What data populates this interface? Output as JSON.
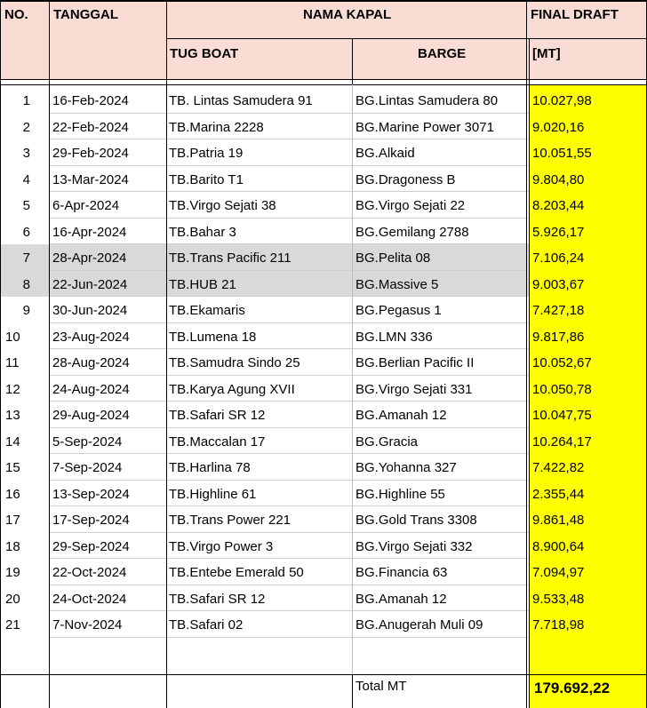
{
  "header": {
    "no": "NO.",
    "tanggal": "TANGGAL",
    "nama_kapal": "NAMA KAPAL",
    "final_draft": "FINAL DRAFT",
    "tug_boat": "TUG BOAT",
    "barge": "BARGE",
    "unit": "[MT]"
  },
  "rows": [
    {
      "no": "1",
      "date": "16-Feb-2024",
      "tug": "TB. Lintas Samudera 91",
      "barge": "BG.Lintas Samudera 80",
      "draft": "10.027,98"
    },
    {
      "no": "2",
      "date": "22-Feb-2024",
      "tug": "TB.Marina 2228",
      "barge": "BG.Marine Power 3071",
      "draft": "9.020,16"
    },
    {
      "no": "3",
      "date": "29-Feb-2024",
      "tug": "TB.Patria 19",
      "barge": "BG.Alkaid",
      "draft": "10.051,55"
    },
    {
      "no": "4",
      "date": "13-Mar-2024",
      "tug": "TB.Barito T1",
      "barge": "BG.Dragoness B",
      "draft": "9.804,80"
    },
    {
      "no": "5",
      "date": "6-Apr-2024",
      "tug": "TB.Virgo Sejati 38",
      "barge": "BG.Virgo Sejati 22",
      "draft": "8.203,44"
    },
    {
      "no": "6",
      "date": "16-Apr-2024",
      "tug": "TB.Bahar 3",
      "barge": "BG.Gemilang 2788",
      "draft": "5.926,17"
    },
    {
      "no": "7",
      "date": "28-Apr-2024",
      "tug": "TB.Trans Pacific 211",
      "barge": "BG.Pelita 08",
      "draft": "7.106,24"
    },
    {
      "no": "8",
      "date": "22-Jun-2024",
      "tug": "TB.HUB 21",
      "barge": "BG.Massive 5",
      "draft": "9.003,67"
    },
    {
      "no": "9",
      "date": "30-Jun-2024",
      "tug": "TB.Ekamaris",
      "barge": "BG.Pegasus 1",
      "draft": "7.427,18"
    },
    {
      "no": "10",
      "date": "23-Aug-2024",
      "tug": "TB.Lumena 18",
      "barge": "BG.LMN 336",
      "draft": "9.817,86"
    },
    {
      "no": "11",
      "date": "28-Aug-2024",
      "tug": "TB.Samudra Sindo 25",
      "barge": "BG.Berlian Pacific II",
      "draft": "10.052,67"
    },
    {
      "no": "12",
      "date": "24-Aug-2024",
      "tug": "TB.Karya Agung XVII",
      "barge": "BG.Virgo Sejati 331",
      "draft": "10.050,78"
    },
    {
      "no": "13",
      "date": "29-Aug-2024",
      "tug": "TB.Safari SR 12",
      "barge": "BG.Amanah 12",
      "draft": "10.047,75"
    },
    {
      "no": "14",
      "date": "5-Sep-2024",
      "tug": "TB.Maccalan 17",
      "barge": "BG.Gracia",
      "draft": "10.264,17"
    },
    {
      "no": "15",
      "date": "7-Sep-2024",
      "tug": "TB.Harlina 78",
      "barge": "BG.Yohanna 327",
      "draft": "7.422,82"
    },
    {
      "no": "16",
      "date": "13-Sep-2024",
      "tug": "TB.Highline 61",
      "barge": "BG.Highline 55",
      "draft": "2.355,44"
    },
    {
      "no": "17",
      "date": "17-Sep-2024",
      "tug": "TB.Trans Power 221",
      "barge": "BG.Gold Trans 3308",
      "draft": "9.861,48"
    },
    {
      "no": "18",
      "date": "29-Sep-2024",
      "tug": "TB.Virgo Power 3",
      "barge": "BG.Virgo Sejati 332",
      "draft": "8.900,64"
    },
    {
      "no": "19",
      "date": "22-Oct-2024",
      "tug": "TB.Entebe Emerald 50",
      "barge": "BG.Financia 63",
      "draft": "7.094,97"
    },
    {
      "no": "20",
      "date": "24-Oct-2024",
      "tug": "TB.Safari SR 12",
      "barge": "BG.Amanah 12",
      "draft": "9.533,48"
    },
    {
      "no": "21",
      "date": "7-Nov-2024",
      "tug": "TB.Safari 02",
      "barge": "BG.Anugerah Muli 09",
      "draft": "7.718,98"
    }
  ],
  "shaded_rows": [
    7,
    8
  ],
  "footer": {
    "total_label": "Total MT",
    "total_value": "179.692,22"
  },
  "colors": {
    "header_bg": "#f9dcd4",
    "draft_col_bg": "#ffff00",
    "shaded_row_bg": "#d9d9d9"
  }
}
